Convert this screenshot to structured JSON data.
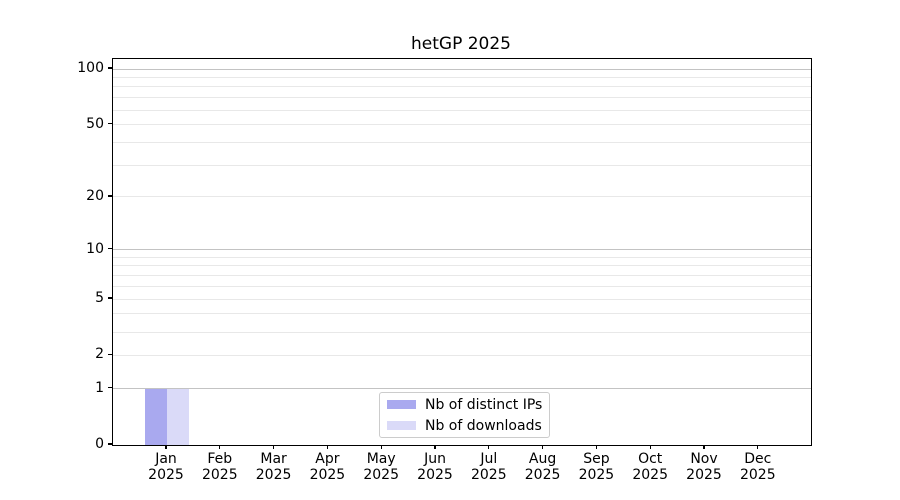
{
  "chart_data": {
    "type": "bar",
    "title": "hetGP 2025",
    "categories": [
      "Jan",
      "Feb",
      "Mar",
      "Apr",
      "May",
      "Jun",
      "Jul",
      "Aug",
      "Sep",
      "Oct",
      "Nov",
      "Dec"
    ],
    "x_year": "2025",
    "series": [
      {
        "name": "Nb of distinct IPs",
        "color": "#a9a9ef",
        "values": [
          1,
          0,
          0,
          0,
          0,
          0,
          0,
          0,
          0,
          0,
          0,
          0
        ]
      },
      {
        "name": "Nb of downloads",
        "color": "#dadaf8",
        "values": [
          1,
          0,
          0,
          0,
          0,
          0,
          0,
          0,
          0,
          0,
          0,
          0
        ]
      }
    ],
    "yscale": "log1p",
    "ylim": [
      0,
      114
    ],
    "y_ticks": [
      0,
      1,
      2,
      5,
      10,
      20,
      50,
      100
    ],
    "y_major_gridlines": [
      1,
      10,
      100
    ],
    "y_minor_gridlines": [
      2,
      3,
      4,
      5,
      6,
      7,
      8,
      9,
      20,
      30,
      40,
      50,
      60,
      70,
      80,
      90
    ],
    "grid": true,
    "legend_position": "lower-center-inside",
    "colors": {
      "major_grid": "#c3c3c3",
      "minor_grid": "#e8e8e8",
      "spine": "#000000",
      "text": "#000000",
      "legend_border": "#cccccc"
    }
  }
}
